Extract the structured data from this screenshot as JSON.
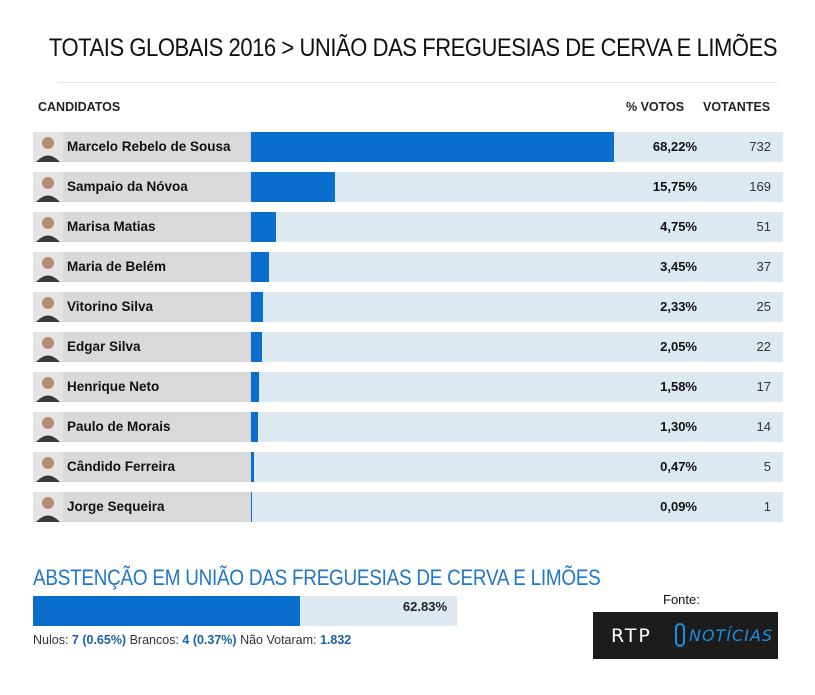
{
  "title": "TOTAIS GLOBAIS 2016 > UNIÃO DAS FREGUESIAS DE  CERVA E LIMÕES",
  "headers": {
    "candidates": "CANDIDATOS",
    "pct_votes": "% VOTOS",
    "voters": "VOTANTES"
  },
  "colors": {
    "bar": "#0a6fcc",
    "track": "#dde9f1",
    "name_bg": "#d9d9d9",
    "accent_text": "#1f77c8"
  },
  "chart_data": {
    "type": "bar",
    "orientation": "horizontal",
    "ylim": [
      0,
      100
    ],
    "rows": [
      {
        "name": "Marcelo Rebelo de Sousa",
        "pct": 68.22,
        "pct_label": "68,22%",
        "votes": 732,
        "votes_label": "732"
      },
      {
        "name": "Sampaio da Nóvoa",
        "pct": 15.75,
        "pct_label": "15,75%",
        "votes": 169,
        "votes_label": "169"
      },
      {
        "name": "Marisa Matias",
        "pct": 4.75,
        "pct_label": "4,75%",
        "votes": 51,
        "votes_label": "51"
      },
      {
        "name": "Maria de Belém",
        "pct": 3.45,
        "pct_label": "3,45%",
        "votes": 37,
        "votes_label": "37"
      },
      {
        "name": "Vitorino Silva",
        "pct": 2.33,
        "pct_label": "2,33%",
        "votes": 25,
        "votes_label": "25"
      },
      {
        "name": "Edgar Silva",
        "pct": 2.05,
        "pct_label": "2,05%",
        "votes": 22,
        "votes_label": "22"
      },
      {
        "name": "Henrique Neto",
        "pct": 1.58,
        "pct_label": "1,58%",
        "votes": 17,
        "votes_label": "17"
      },
      {
        "name": "Paulo de Morais",
        "pct": 1.3,
        "pct_label": "1,30%",
        "votes": 14,
        "votes_label": "14"
      },
      {
        "name": "Cândido Ferreira",
        "pct": 0.47,
        "pct_label": "0,47%",
        "votes": 5,
        "votes_label": "5"
      },
      {
        "name": "Jorge Sequeira",
        "pct": 0.09,
        "pct_label": "0,09%",
        "votes": 1,
        "votes_label": "1"
      }
    ]
  },
  "abstention": {
    "title": "ABSTENÇÃO EM UNIÃO DAS FREGUESIAS DE CERVA E LIMÕES",
    "pct": 62.83,
    "pct_label": "62.83%"
  },
  "footer": {
    "nulos_label": "Nulos: ",
    "nulos_value": "7 (0.65%)",
    "brancos_label": " Brancos: ",
    "brancos_value": "4 (0.37%)",
    "nao_votaram_label": " Não Votaram: ",
    "nao_votaram_value": "1.832"
  },
  "source": {
    "label": "Fonte:",
    "logo_left": "RTP",
    "logo_right": "NOTÍCIAS"
  }
}
